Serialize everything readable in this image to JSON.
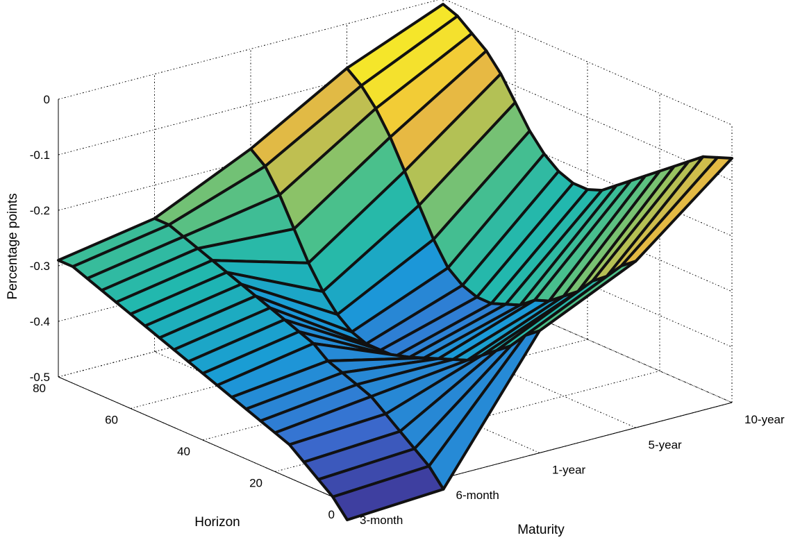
{
  "chart_data": {
    "type": "surface",
    "title": "",
    "xlabel": "Maturity",
    "ylabel": "Horizon",
    "zlabel": "Percentage points",
    "x_ticks": [
      "3-month",
      "6-month",
      "1-year",
      "5-year",
      "10-year"
    ],
    "y_ticks": [
      "0",
      "20",
      "40",
      "60",
      "80"
    ],
    "z_ticks": [
      "0",
      "-0.1",
      "-0.2",
      "-0.3",
      "-0.4",
      "-0.5"
    ],
    "zlim": [
      -0.5,
      0
    ],
    "ylim": [
      0,
      80
    ],
    "grid": true,
    "colormap": [
      "#3e3fa0",
      "#3b6dd1",
      "#1a9ad8",
      "#1fb7b0",
      "#4cc08a",
      "#a5c35a",
      "#f0b840",
      "#f5e62a"
    ],
    "horizons": [
      0,
      4,
      8,
      12,
      16,
      20,
      24,
      28,
      32,
      36,
      40,
      44,
      48,
      52,
      56,
      60,
      64,
      68,
      72,
      76,
      80
    ],
    "series": [
      {
        "name": "3-month",
        "values": [
          -0.53,
          -0.5,
          -0.48,
          -0.46,
          -0.44,
          -0.43,
          -0.42,
          -0.41,
          -0.4,
          -0.39,
          -0.38,
          -0.37,
          -0.36,
          -0.35,
          -0.34,
          -0.33,
          -0.32,
          -0.31,
          -0.3,
          -0.29,
          -0.29
        ]
      },
      {
        "name": "6-month",
        "values": [
          -0.52,
          -0.49,
          -0.47,
          -0.45,
          -0.43,
          -0.41,
          -0.4,
          -0.39,
          -0.38,
          -0.36,
          -0.35,
          -0.34,
          -0.33,
          -0.32,
          -0.31,
          -0.3,
          -0.29,
          -0.28,
          -0.27,
          -0.26,
          -0.26
        ]
      },
      {
        "name": "1-year",
        "values": [
          -0.28,
          -0.3,
          -0.33,
          -0.35,
          -0.37,
          -0.39,
          -0.4,
          -0.41,
          -0.42,
          -0.43,
          -0.44,
          -0.44,
          -0.44,
          -0.43,
          -0.41,
          -0.38,
          -0.34,
          -0.29,
          -0.24,
          -0.2,
          -0.18
        ]
      },
      {
        "name": "5-year",
        "values": [
          -0.2,
          -0.22,
          -0.25,
          -0.27,
          -0.3,
          -0.32,
          -0.34,
          -0.35,
          -0.37,
          -0.38,
          -0.39,
          -0.39,
          -0.38,
          -0.36,
          -0.32,
          -0.27,
          -0.22,
          -0.17,
          -0.13,
          -0.1,
          -0.08
        ]
      },
      {
        "name": "10-year",
        "values": [
          -0.06,
          -0.07,
          -0.08,
          -0.1,
          -0.12,
          -0.14,
          -0.16,
          -0.18,
          -0.2,
          -0.22,
          -0.23,
          -0.23,
          -0.22,
          -0.2,
          -0.17,
          -0.13,
          -0.09,
          -0.06,
          -0.04,
          -0.02,
          -0.01
        ]
      }
    ]
  }
}
